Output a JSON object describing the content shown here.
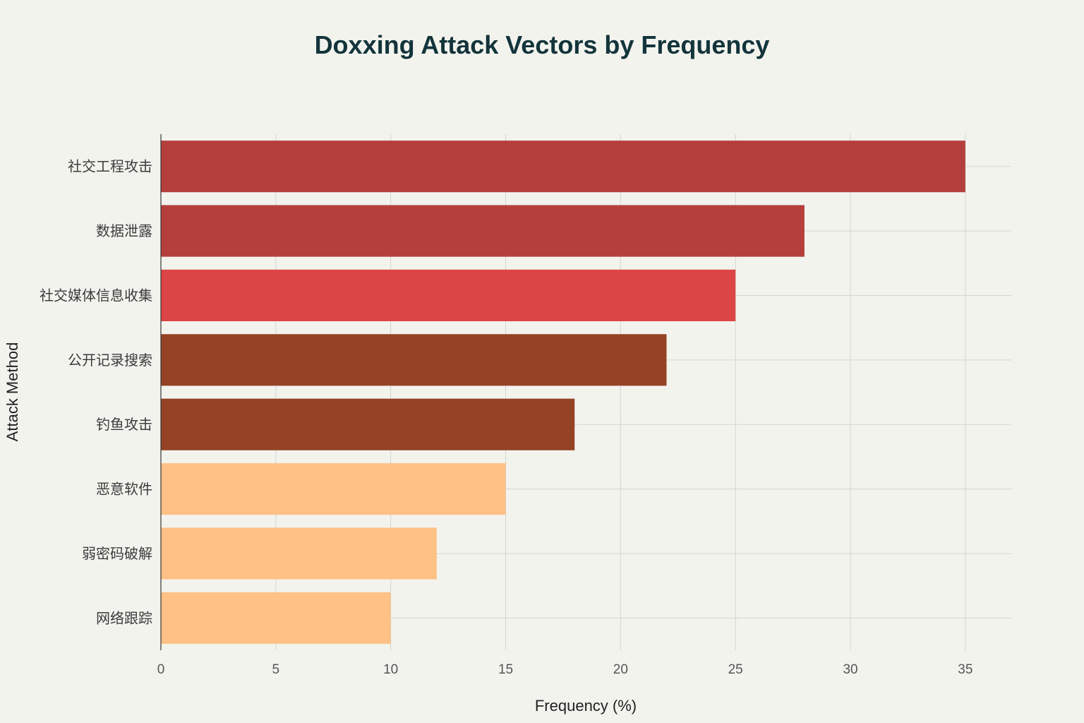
{
  "chart_data": {
    "type": "bar",
    "orientation": "horizontal",
    "title": "Doxxing Attack Vectors by Frequency",
    "xlabel": "Frequency (%)",
    "ylabel": "Attack Method",
    "xlim": [
      0,
      37
    ],
    "xticks": [
      0,
      5,
      10,
      15,
      20,
      25,
      30,
      35
    ],
    "grid": true,
    "legend": "none",
    "categories": [
      "社交工程攻击",
      "数据泄露",
      "社交媒体信息收集",
      "公开记录搜索",
      "钓鱼攻击",
      "恶意软件",
      "弱密码破解",
      "网络跟踪"
    ],
    "values": [
      35,
      28,
      25,
      22,
      18,
      15,
      12,
      10
    ],
    "colors": [
      "#b53f3c",
      "#b53f3c",
      "#db4545",
      "#944325",
      "#944325",
      "#ffc185",
      "#ffc185",
      "#ffc185"
    ]
  },
  "colors": {
    "background": "#f3f3ee",
    "title": "#13343b"
  }
}
